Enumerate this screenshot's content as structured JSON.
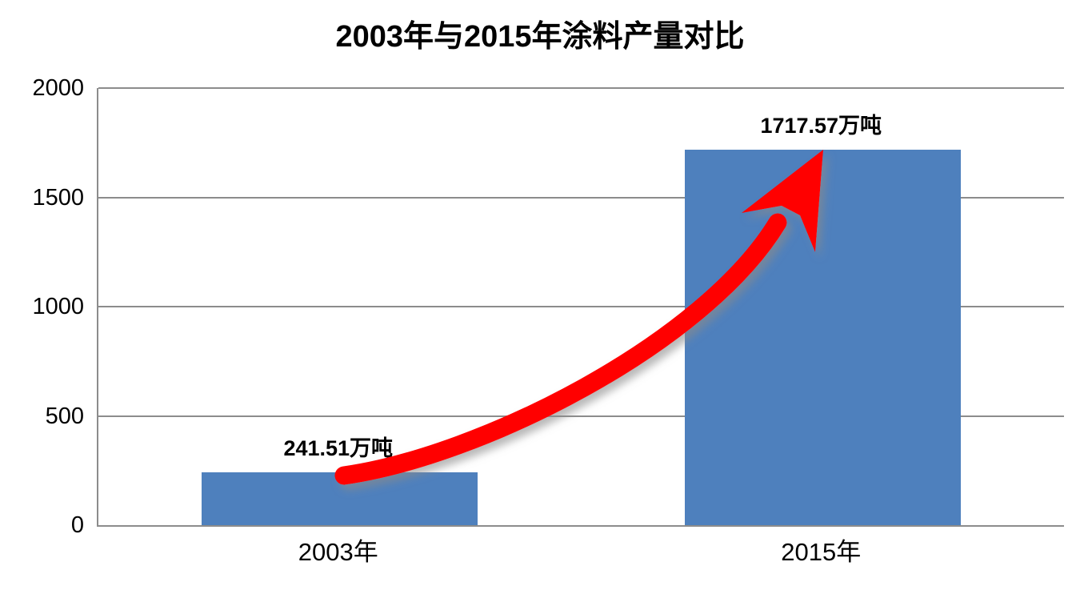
{
  "chart_data": {
    "type": "bar",
    "title": "2003年与2015年涂料产量对比",
    "categories": [
      "2003年",
      "2015年"
    ],
    "values": [
      241.51,
      1717.57
    ],
    "value_labels": [
      "241.51万吨",
      "1717.57万吨"
    ],
    "unit": "万吨",
    "xlabel": "",
    "ylabel": "",
    "ylim": [
      0,
      2000
    ],
    "yticks": [
      0,
      500,
      1000,
      1500,
      2000
    ],
    "grid": true,
    "legend": false,
    "annotation": {
      "kind": "growth-arrow",
      "from_category": "2003年",
      "to_category": "2015年"
    },
    "colors": {
      "bar": "#4E80BD",
      "grid": "#8C8C8C",
      "axis": "#8C8C8C",
      "text": "#000000",
      "arrow": "#FF0000",
      "arrow_shadow": "#8A8A8A",
      "background": "#FFFFFF"
    }
  }
}
